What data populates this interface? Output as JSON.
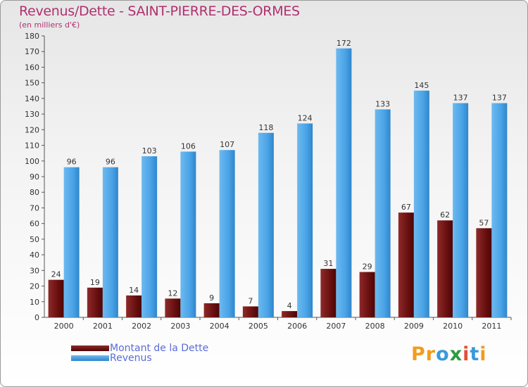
{
  "header": {
    "title": "Revenus/Dette - SAINT-PIERRE-DES-ORMES",
    "subtitle": "(en milliers d'€)"
  },
  "chart_data": {
    "type": "bar",
    "title": "Revenus/Dette - SAINT-PIERRE-DES-ORMES",
    "ylabel": "(en milliers d'€)",
    "categories": [
      "2000",
      "2001",
      "2002",
      "2003",
      "2004",
      "2005",
      "2006",
      "2007",
      "2008",
      "2009",
      "2010",
      "2011"
    ],
    "series": [
      {
        "name": "Montant de la Dette",
        "color": "#7a1a1a",
        "values": [
          24,
          19,
          14,
          12,
          9,
          7,
          4,
          31,
          29,
          67,
          62,
          57
        ]
      },
      {
        "name": "Revenus",
        "color": "#4aa3e6",
        "values": [
          96,
          96,
          103,
          106,
          107,
          118,
          124,
          172,
          133,
          145,
          137,
          137
        ]
      }
    ],
    "ylim": [
      0,
      180
    ],
    "yticks": [
      0,
      10,
      20,
      30,
      40,
      50,
      60,
      70,
      80,
      90,
      100,
      110,
      120,
      130,
      140,
      150,
      160,
      170,
      180
    ],
    "grid": false,
    "legend": "bottom-left"
  },
  "legend": {
    "items": [
      {
        "label": "Montant de la Dette",
        "color": "#6e0f0f"
      },
      {
        "label": "Revenus",
        "color": "#4aa3e6"
      }
    ]
  },
  "brand": {
    "letters": [
      "P",
      "r",
      "o",
      "x",
      "i",
      "t",
      "i"
    ],
    "colors": [
      "#f29c1f",
      "#f29c1f",
      "#3a9ad9",
      "#2e9b3e",
      "#e2503a",
      "#3a9ad9",
      "#f29c1f"
    ]
  }
}
